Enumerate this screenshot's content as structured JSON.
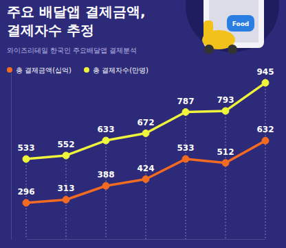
{
  "chart_data": {
    "type": "line",
    "title": "주요 배달앱 결제금액,\n결제자수 추정",
    "subtitle": "와이즈리테일 한국인 주요배달앱 결제분석",
    "annotations": [
      "Food"
    ],
    "categories": [
      null,
      null,
      null,
      null,
      null,
      null,
      null
    ],
    "series": [
      {
        "name": "총 결제금액(십억)",
        "color": "#f26b21",
        "marker": "circle",
        "values": [
          296,
          313,
          388,
          424,
          533,
          512,
          632
        ]
      },
      {
        "name": "총 결제자수(만명)",
        "color": "#eef53a",
        "marker": "circle",
        "values": [
          533,
          552,
          633,
          672,
          787,
          793,
          945
        ]
      }
    ],
    "ylim": [
      100,
      1000
    ],
    "tick_labels": false,
    "data_labels": true,
    "legend": "top-left",
    "grid": false
  }
}
